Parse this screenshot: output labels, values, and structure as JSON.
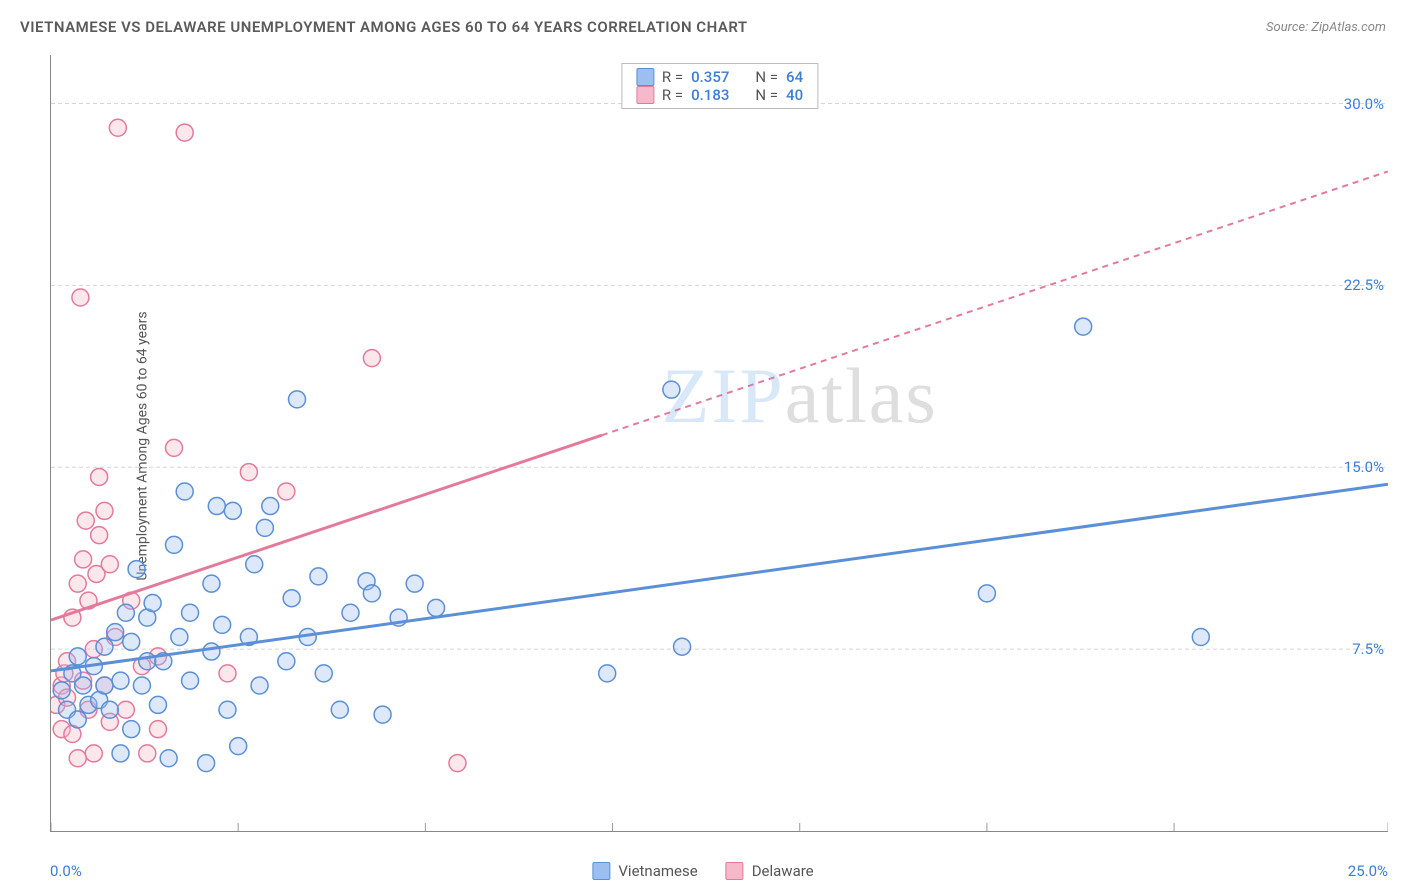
{
  "header": {
    "title": "VIETNAMESE VS DELAWARE UNEMPLOYMENT AMONG AGES 60 TO 64 YEARS CORRELATION CHART",
    "source": "Source: ZipAtlas.com"
  },
  "watermark": {
    "zip": "ZIP",
    "atlas": "atlas",
    "zip_color": "#6aa7e8"
  },
  "chart": {
    "type": "scatter",
    "y_axis_label": "Unemployment Among Ages 60 to 64 years",
    "xlim": [
      0,
      25
    ],
    "ylim": [
      0,
      32
    ],
    "ytick_values": [
      7.5,
      15.0,
      22.5,
      30.0
    ],
    "ytick_labels": [
      "7.5%",
      "15.0%",
      "22.5%",
      "30.0%"
    ],
    "xtick_values": [
      0,
      3.5,
      7.0,
      10.5,
      14.0,
      17.5,
      21.0,
      25.0
    ],
    "x_origin_label": "0.0%",
    "x_end_label": "25.0%",
    "tick_label_color": "#3b7dd8",
    "grid_color": "#d5d5d5",
    "background_color": "#ffffff",
    "marker_radius": 8.5,
    "series": {
      "vietnamese": {
        "label": "Vietnamese",
        "color_stroke": "#5b8fd6",
        "color_fill": "#9dbef0",
        "points": [
          [
            0.2,
            5.8
          ],
          [
            0.3,
            5.0
          ],
          [
            0.4,
            6.5
          ],
          [
            0.5,
            4.6
          ],
          [
            0.6,
            6.0
          ],
          [
            0.5,
            7.2
          ],
          [
            0.7,
            5.2
          ],
          [
            0.8,
            6.8
          ],
          [
            0.9,
            5.4
          ],
          [
            1.0,
            7.6
          ],
          [
            1.0,
            6.0
          ],
          [
            1.1,
            5.0
          ],
          [
            1.2,
            8.2
          ],
          [
            1.3,
            6.2
          ],
          [
            1.4,
            9.0
          ],
          [
            1.5,
            4.2
          ],
          [
            1.5,
            7.8
          ],
          [
            1.6,
            10.8
          ],
          [
            1.7,
            6.0
          ],
          [
            1.8,
            8.8
          ],
          [
            1.8,
            7.0
          ],
          [
            1.9,
            9.4
          ],
          [
            2.0,
            5.2
          ],
          [
            2.1,
            7.0
          ],
          [
            2.2,
            3.0
          ],
          [
            2.3,
            11.8
          ],
          [
            2.4,
            8.0
          ],
          [
            2.5,
            14.0
          ],
          [
            2.6,
            6.2
          ],
          [
            2.6,
            9.0
          ],
          [
            2.9,
            2.8
          ],
          [
            3.0,
            10.2
          ],
          [
            3.0,
            7.4
          ],
          [
            3.1,
            13.4
          ],
          [
            3.2,
            8.5
          ],
          [
            3.3,
            5.0
          ],
          [
            3.4,
            13.2
          ],
          [
            3.5,
            3.5
          ],
          [
            3.7,
            8.0
          ],
          [
            3.8,
            11.0
          ],
          [
            3.9,
            6.0
          ],
          [
            4.0,
            12.5
          ],
          [
            4.1,
            13.4
          ],
          [
            4.4,
            7.0
          ],
          [
            4.5,
            9.6
          ],
          [
            4.6,
            17.8
          ],
          [
            4.8,
            8.0
          ],
          [
            5.0,
            10.5
          ],
          [
            5.1,
            6.5
          ],
          [
            5.4,
            5.0
          ],
          [
            5.6,
            9.0
          ],
          [
            5.9,
            10.3
          ],
          [
            6.0,
            9.8
          ],
          [
            6.2,
            4.8
          ],
          [
            6.5,
            8.8
          ],
          [
            6.8,
            10.2
          ],
          [
            7.2,
            9.2
          ],
          [
            10.4,
            6.5
          ],
          [
            11.8,
            7.6
          ],
          [
            11.6,
            18.2
          ],
          [
            17.5,
            9.8
          ],
          [
            19.3,
            20.8
          ],
          [
            21.5,
            8.0
          ],
          [
            1.3,
            3.2
          ]
        ],
        "trend": {
          "x1": 0,
          "y1": 6.6,
          "x2": 25,
          "y2": 14.3,
          "dash_after_x": 25
        }
      },
      "delaware": {
        "label": "Delaware",
        "color_stroke": "#e47a9a",
        "color_fill": "#f6b9cc",
        "points": [
          [
            0.1,
            5.2
          ],
          [
            0.2,
            6.0
          ],
          [
            0.2,
            4.2
          ],
          [
            0.25,
            6.5
          ],
          [
            0.3,
            5.5
          ],
          [
            0.3,
            7.0
          ],
          [
            0.4,
            4.0
          ],
          [
            0.4,
            8.8
          ],
          [
            0.5,
            3.0
          ],
          [
            0.5,
            10.2
          ],
          [
            0.55,
            22.0
          ],
          [
            0.6,
            6.2
          ],
          [
            0.6,
            11.2
          ],
          [
            0.65,
            12.8
          ],
          [
            0.7,
            5.0
          ],
          [
            0.7,
            9.5
          ],
          [
            0.8,
            7.5
          ],
          [
            0.8,
            3.2
          ],
          [
            0.85,
            10.6
          ],
          [
            0.9,
            12.2
          ],
          [
            0.9,
            14.6
          ],
          [
            1.0,
            6.0
          ],
          [
            1.0,
            13.2
          ],
          [
            1.1,
            4.5
          ],
          [
            1.1,
            11.0
          ],
          [
            1.2,
            8.0
          ],
          [
            1.25,
            29.0
          ],
          [
            1.4,
            5.0
          ],
          [
            1.5,
            9.5
          ],
          [
            1.7,
            6.8
          ],
          [
            1.8,
            3.2
          ],
          [
            2.0,
            7.2
          ],
          [
            2.3,
            15.8
          ],
          [
            2.5,
            28.8
          ],
          [
            3.3,
            6.5
          ],
          [
            3.7,
            14.8
          ],
          [
            4.4,
            14.0
          ],
          [
            6.0,
            19.5
          ],
          [
            7.6,
            2.8
          ],
          [
            2.0,
            4.2
          ]
        ],
        "trend": {
          "x1": 0,
          "y1": 8.7,
          "x2": 25,
          "y2": 27.2,
          "dash_after_x": 10.3
        }
      }
    },
    "stats_box": {
      "rows": [
        {
          "swatch": "vietnamese",
          "r_label": "R =",
          "r_value": "0.357",
          "n_label": "N =",
          "n_value": "64"
        },
        {
          "swatch": "delaware",
          "r_label": "R =",
          "r_value": "0.183",
          "n_label": "N =",
          "n_value": "40"
        }
      ],
      "value_color": "#3b7dd8"
    },
    "bottom_legend": [
      {
        "key": "vietnamese",
        "label": "Vietnamese"
      },
      {
        "key": "delaware",
        "label": "Delaware"
      }
    ]
  }
}
